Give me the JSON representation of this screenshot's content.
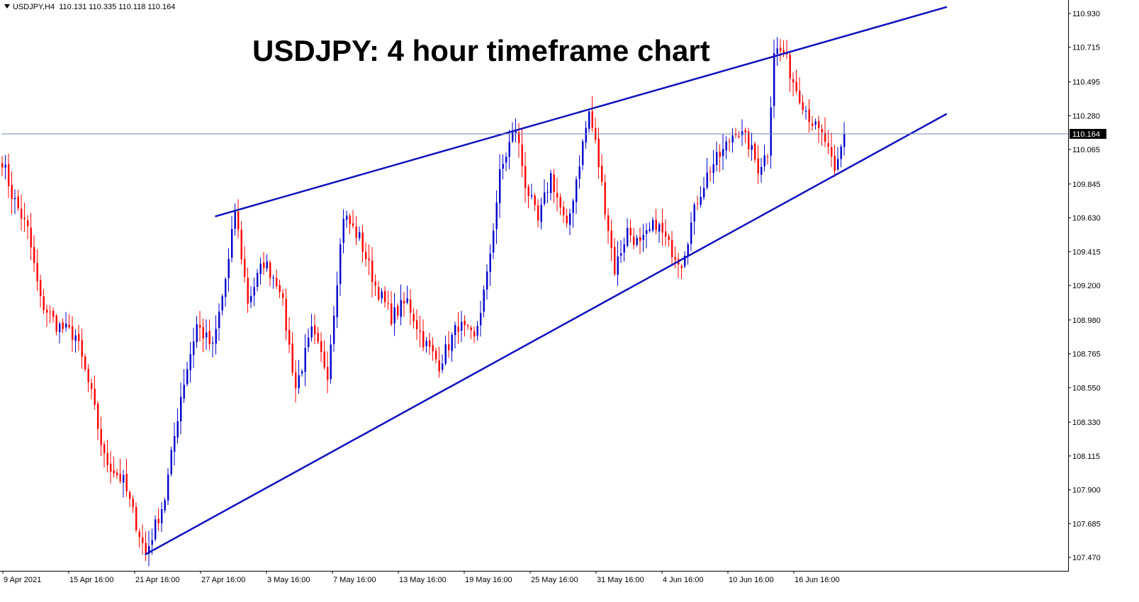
{
  "header": {
    "symbol": "USDJPY,H4",
    "ohlc": "110.131 110.335 110.118 110.164"
  },
  "chart_data": {
    "type": "candlestick",
    "title": "USDJPY: 4 hour timeframe chart",
    "symbol": "USDJPY",
    "timeframe": "H4",
    "ylim": [
      107.4,
      111.0
    ],
    "y_ticks": [
      "110.930",
      "110.715",
      "110.495",
      "110.280",
      "110.065",
      "109.845",
      "109.630",
      "109.415",
      "109.200",
      "108.980",
      "108.765",
      "108.550",
      "108.330",
      "108.115",
      "107.900",
      "107.685",
      "107.470"
    ],
    "x_ticks": [
      "9 Apr 2021",
      "15 Apr 16:00",
      "21 Apr 16:00",
      "27 Apr 16:00",
      "3 May 16:00",
      "7 May 16:00",
      "13 May 16:00",
      "19 May 16:00",
      "25 May 16:00",
      "31 May 16:00",
      "4 Jun 16:00",
      "10 Jun 16:00",
      "16 Jun 16:00"
    ],
    "current_price": "110.164",
    "colors": {
      "up": "#0000cc",
      "down": "#ff0000",
      "trendline": "#1010c0",
      "price_line": "#6d86b5",
      "price_label_bg": "#000000"
    },
    "trendlines": [
      {
        "name": "upper",
        "from": [
          67,
          109.64
        ],
        "to": [
          296,
          110.97
        ]
      },
      {
        "name": "lower",
        "from": [
          45,
          107.49
        ],
        "to": [
          296,
          110.29
        ]
      }
    ],
    "swing_points": [
      [
        0,
        110.0
      ],
      [
        3,
        109.78
      ],
      [
        8,
        109.55
      ],
      [
        12,
        109.1
      ],
      [
        17,
        108.95
      ],
      [
        23,
        108.88
      ],
      [
        28,
        108.5
      ],
      [
        32,
        108.1
      ],
      [
        38,
        107.95
      ],
      [
        45,
        107.49
      ],
      [
        51,
        107.85
      ],
      [
        56,
        108.5
      ],
      [
        61,
        108.95
      ],
      [
        66,
        108.8
      ],
      [
        71,
        109.35
      ],
      [
        73,
        109.68
      ],
      [
        77,
        109.1
      ],
      [
        82,
        109.35
      ],
      [
        87,
        109.2
      ],
      [
        92,
        108.55
      ],
      [
        97,
        108.9
      ],
      [
        102,
        108.65
      ],
      [
        107,
        109.65
      ],
      [
        112,
        109.5
      ],
      [
        117,
        109.2
      ],
      [
        122,
        109.0
      ],
      [
        127,
        109.1
      ],
      [
        132,
        108.85
      ],
      [
        137,
        108.7
      ],
      [
        143,
        108.95
      ],
      [
        148,
        108.85
      ],
      [
        152,
        109.25
      ],
      [
        156,
        109.9
      ],
      [
        159,
        110.1
      ],
      [
        161,
        110.2
      ],
      [
        164,
        109.85
      ],
      [
        168,
        109.6
      ],
      [
        172,
        109.9
      ],
      [
        177,
        109.55
      ],
      [
        182,
        110.1
      ],
      [
        184,
        110.3
      ],
      [
        186,
        110.1
      ],
      [
        189,
        109.7
      ],
      [
        192,
        109.3
      ],
      [
        196,
        109.55
      ],
      [
        200,
        109.45
      ],
      [
        205,
        109.6
      ],
      [
        209,
        109.45
      ],
      [
        213,
        109.35
      ],
      [
        218,
        109.75
      ],
      [
        222,
        109.95
      ],
      [
        226,
        110.05
      ],
      [
        230,
        110.2
      ],
      [
        234,
        110.1
      ],
      [
        237,
        109.95
      ],
      [
        240,
        110.05
      ],
      [
        242,
        110.7
      ],
      [
        245,
        110.68
      ],
      [
        248,
        110.5
      ],
      [
        252,
        110.32
      ],
      [
        255,
        110.2
      ],
      [
        258,
        110.12
      ],
      [
        261,
        109.9
      ],
      [
        264,
        110.164
      ]
    ]
  }
}
